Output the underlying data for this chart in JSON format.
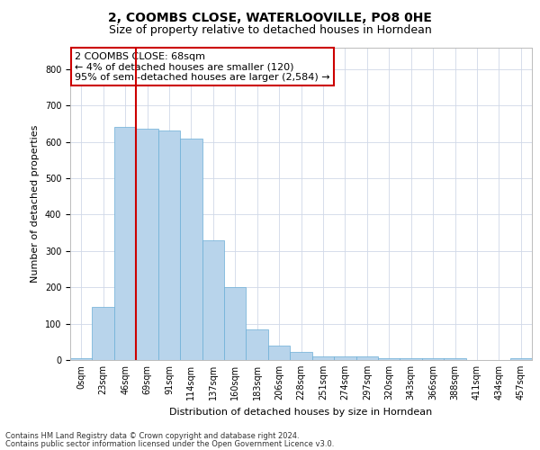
{
  "title_line1": "2, COOMBS CLOSE, WATERLOOVILLE, PO8 0HE",
  "title_line2": "Size of property relative to detached houses in Horndean",
  "xlabel": "Distribution of detached houses by size in Horndean",
  "ylabel": "Number of detached properties",
  "footer_line1": "Contains HM Land Registry data © Crown copyright and database right 2024.",
  "footer_line2": "Contains public sector information licensed under the Open Government Licence v3.0.",
  "annotation_title": "2 COOMBS CLOSE: 68sqm",
  "annotation_line1": "← 4% of detached houses are smaller (120)",
  "annotation_line2": "95% of semi-detached houses are larger (2,584) →",
  "bar_color": "#b8d4eb",
  "bar_edge_color": "#6aaed6",
  "grid_color": "#d0d8e8",
  "vline_color": "#cc0000",
  "annotation_box_color": "#cc0000",
  "categories": [
    "0sqm",
    "23sqm",
    "46sqm",
    "69sqm",
    "91sqm",
    "114sqm",
    "137sqm",
    "160sqm",
    "183sqm",
    "206sqm",
    "228sqm",
    "251sqm",
    "274sqm",
    "297sqm",
    "320sqm",
    "343sqm",
    "366sqm",
    "388sqm",
    "411sqm",
    "434sqm",
    "457sqm"
  ],
  "values": [
    5,
    145,
    640,
    635,
    630,
    608,
    330,
    200,
    85,
    40,
    23,
    10,
    10,
    10,
    5,
    5,
    5,
    5,
    0,
    0,
    5
  ],
  "vline_x_index": 3,
  "ylim": [
    0,
    860
  ],
  "yticks": [
    0,
    100,
    200,
    300,
    400,
    500,
    600,
    700,
    800
  ],
  "title_fontsize": 10,
  "subtitle_fontsize": 9,
  "ylabel_fontsize": 8,
  "xlabel_fontsize": 8,
  "tick_fontsize": 7,
  "footer_fontsize": 6,
  "annot_fontsize": 8
}
